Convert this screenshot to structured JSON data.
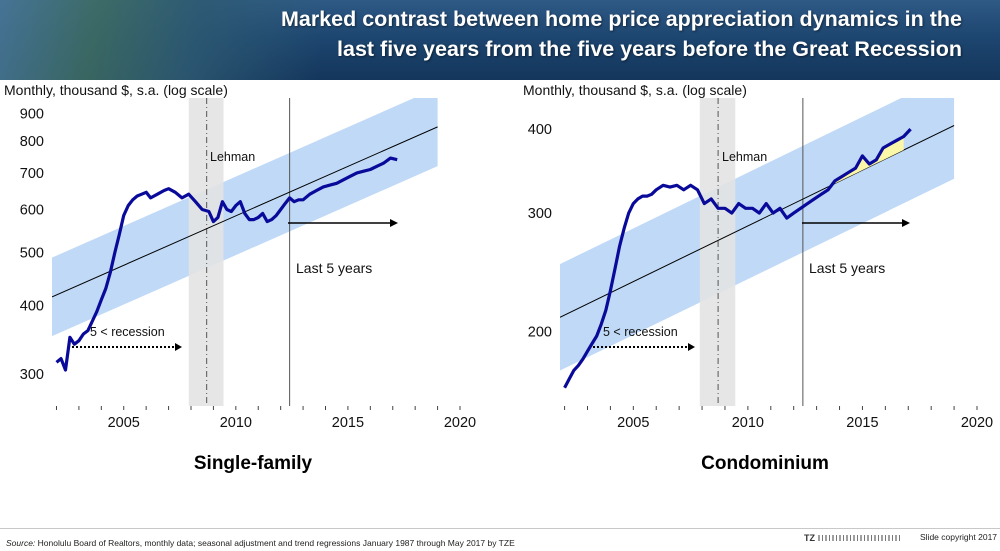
{
  "header": {
    "title": "Marked contrast between home price appreciation dynamics in the\nlast five years from the five years before the Great Recession"
  },
  "footer": {
    "source_label": "Source:",
    "source_text": "Honolulu Board of Realtors, monthly data; seasonal adjustment and trend regressions January 1987 through May 2017 by TZE",
    "logo_text": "TZ",
    "copyright": "Slide copyright 2017"
  },
  "colors": {
    "series": "#0a0a9a",
    "band": "#bfd9f7",
    "recession": "#e3e3e3",
    "trend": "#000000",
    "highlight": "#fbf7a8"
  },
  "chart_data": [
    {
      "type": "line",
      "caption": "Single-family",
      "ylabel": "Monthly, thousand $, s.a. (log scale)",
      "log_scale": true,
      "xlim": [
        2001.8,
        2020
      ],
      "ylim": [
        262,
        960
      ],
      "x_ticks": [
        2005,
        2010,
        2015,
        2020
      ],
      "y_ticks": [
        300,
        400,
        500,
        600,
        700,
        800,
        900
      ],
      "recession": [
        2007.9,
        2009.45
      ],
      "lehman_x": 2008.7,
      "lehman_label": "Lehman",
      "last5_x": 2012.4,
      "last5_label": "Last 5 years",
      "recession_label": "5 < recession",
      "trend": {
        "x": [
          2001.8,
          2019.0
        ],
        "y": [
          415,
          850
        ]
      },
      "band_ratio": 1.18,
      "series": [
        {
          "x": [
            2002.0,
            2002.2,
            2002.4,
            2002.6,
            2002.8,
            2003.0,
            2003.2,
            2003.4,
            2003.6,
            2003.8,
            2004.0,
            2004.2,
            2004.4,
            2004.6,
            2004.8,
            2005.0,
            2005.2,
            2005.4,
            2005.6,
            2005.8,
            2006.0,
            2006.2,
            2006.5,
            2006.8,
            2007.0,
            2007.3,
            2007.6,
            2007.9,
            2008.2,
            2008.5,
            2008.8,
            2009.0,
            2009.2,
            2009.4,
            2009.6,
            2009.8,
            2010.0,
            2010.2,
            2010.4,
            2010.6,
            2010.8,
            2011.0,
            2011.2,
            2011.4,
            2011.6,
            2011.8,
            2012.0,
            2012.2,
            2012.4,
            2012.6,
            2012.8,
            2013.0,
            2013.3,
            2013.6,
            2013.9,
            2014.2,
            2014.5,
            2014.8,
            2015.1,
            2015.4,
            2015.7,
            2016.0,
            2016.3,
            2016.6,
            2016.9,
            2017.2
          ],
          "y": [
            315,
            320,
            305,
            350,
            340,
            345,
            355,
            360,
            375,
            390,
            410,
            430,
            460,
            500,
            540,
            585,
            610,
            625,
            635,
            640,
            645,
            630,
            640,
            650,
            655,
            645,
            630,
            640,
            620,
            600,
            595,
            570,
            580,
            620,
            600,
            595,
            610,
            620,
            590,
            575,
            575,
            580,
            590,
            570,
            575,
            585,
            600,
            615,
            630,
            620,
            625,
            625,
            640,
            650,
            660,
            665,
            670,
            680,
            690,
            700,
            705,
            710,
            720,
            730,
            745,
            740
          ]
        }
      ]
    },
    {
      "type": "line",
      "caption": "Condominium",
      "ylabel": "Monthly, thousand $, s.a. (log scale)",
      "log_scale": true,
      "xlim": [
        2001.8,
        2020
      ],
      "ylim": [
        155,
        445
      ],
      "x_ticks": [
        2005,
        2010,
        2015,
        2020
      ],
      "y_ticks": [
        200,
        300,
        400
      ],
      "recession": [
        2007.9,
        2009.45
      ],
      "lehman_x": 2008.7,
      "lehman_label": "Lehman",
      "last5_x": 2012.4,
      "last5_label": "Last 5 years",
      "recession_label": "5 < recession",
      "trend": {
        "x": [
          2001.8,
          2019.0
        ],
        "y": [
          210,
          405
        ]
      },
      "band_ratio": 1.2,
      "highlight": {
        "x": [
          2013.0,
          2017.0
        ]
      },
      "series": [
        {
          "x": [
            2002.0,
            2002.2,
            2002.4,
            2002.6,
            2002.8,
            2003.0,
            2003.2,
            2003.4,
            2003.6,
            2003.8,
            2004.0,
            2004.2,
            2004.4,
            2004.6,
            2004.8,
            2005.0,
            2005.2,
            2005.4,
            2005.6,
            2005.8,
            2006.0,
            2006.3,
            2006.6,
            2006.9,
            2007.2,
            2007.5,
            2007.8,
            2008.1,
            2008.4,
            2008.7,
            2009.0,
            2009.3,
            2009.6,
            2009.9,
            2010.2,
            2010.5,
            2010.8,
            2011.1,
            2011.4,
            2011.7,
            2012.0,
            2012.3,
            2012.6,
            2012.9,
            2013.2,
            2013.5,
            2013.8,
            2014.1,
            2014.4,
            2014.7,
            2015.0,
            2015.3,
            2015.6,
            2015.9,
            2016.2,
            2016.5,
            2016.8,
            2017.1
          ],
          "y": [
            165,
            170,
            175,
            178,
            182,
            187,
            192,
            197,
            205,
            215,
            230,
            248,
            268,
            285,
            300,
            310,
            315,
            318,
            318,
            320,
            325,
            330,
            328,
            330,
            325,
            330,
            325,
            310,
            315,
            305,
            305,
            300,
            310,
            305,
            305,
            300,
            310,
            300,
            305,
            295,
            300,
            305,
            310,
            315,
            320,
            325,
            335,
            340,
            345,
            350,
            365,
            355,
            360,
            375,
            380,
            385,
            390,
            400
          ]
        }
      ]
    }
  ]
}
